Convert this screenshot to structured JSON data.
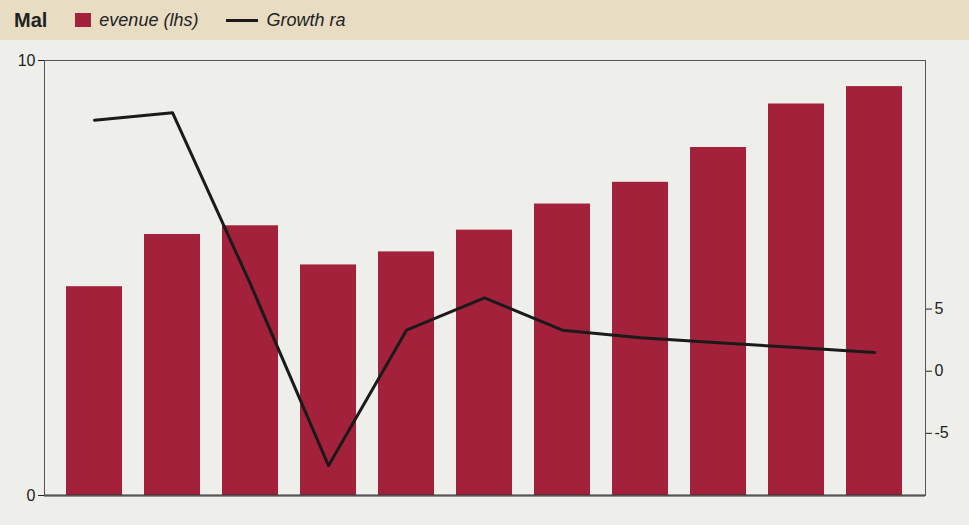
{
  "chart_data": {
    "type": "bar",
    "title": "Mal",
    "categories": [
      null,
      null,
      null,
      null,
      null,
      null,
      null,
      null,
      null,
      null,
      null
    ],
    "series": [
      {
        "name": "evenue (lhs)",
        "type": "bar",
        "color": "#a3213a",
        "values": [
          4.8,
          6.0,
          6.2,
          5.3,
          5.6,
          6.1,
          6.7,
          7.2,
          8.0,
          9.0,
          9.4
        ]
      },
      {
        "name": "Growth ra",
        "type": "line",
        "color": "#1a1a1a",
        "axis": "y2",
        "values": [
          20.2,
          20.8,
          7.0,
          -7.6,
          3.3,
          5.9,
          3.3,
          2.7,
          2.3,
          1.9,
          1.5
        ]
      }
    ],
    "ylim": [
      0,
      10
    ],
    "yticks": [
      0,
      10
    ],
    "y2lim": [
      -10,
      25
    ],
    "y2ticks": [
      -5,
      0,
      5
    ],
    "legend": "top"
  }
}
